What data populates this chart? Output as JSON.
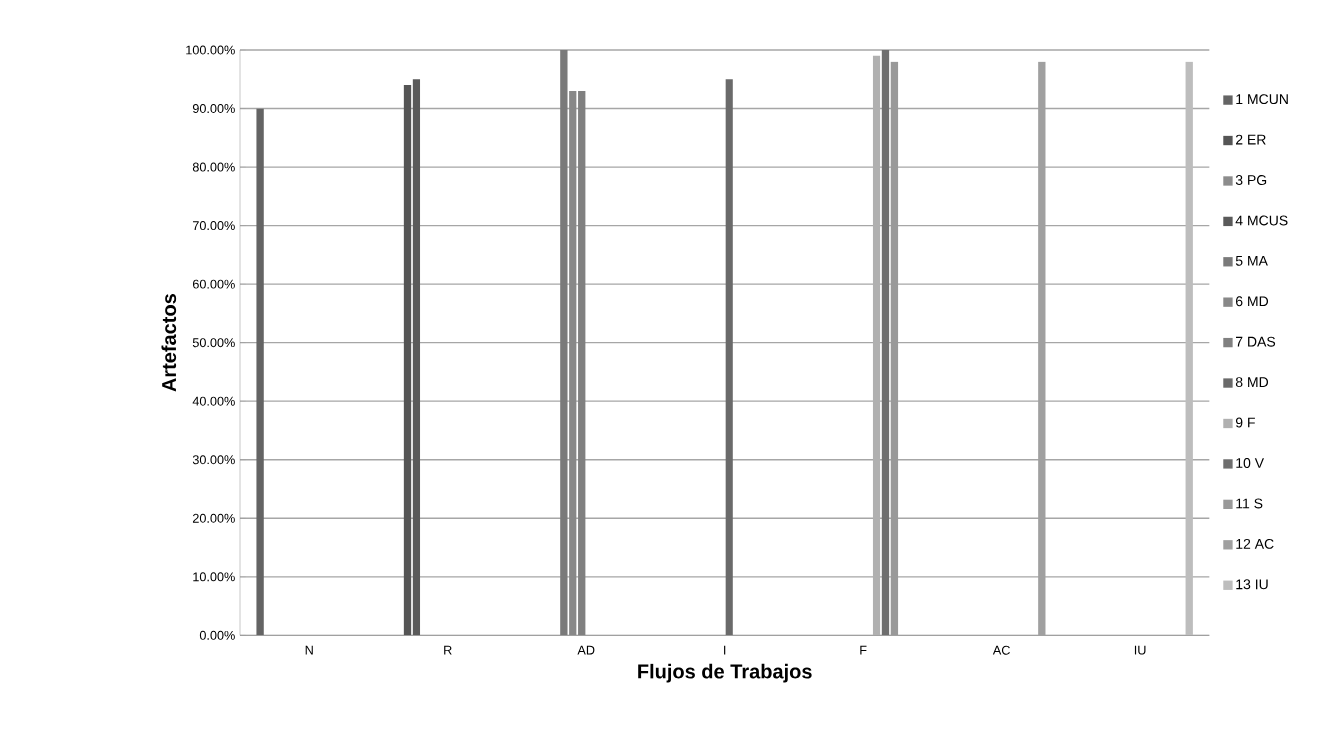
{
  "chart_data": {
    "type": "bar",
    "xlabel": "Flujos de Trabajos",
    "ylabel": "Artefactos",
    "categories": [
      "N",
      "R",
      "AD",
      "I",
      "F",
      "AC",
      "IU"
    ],
    "ylim": [
      0,
      100
    ],
    "yticks": [
      {
        "value": 0,
        "label": "0.00%"
      },
      {
        "value": 10,
        "label": "10.00%"
      },
      {
        "value": 20,
        "label": "20.00%"
      },
      {
        "value": 30,
        "label": "30.00%"
      },
      {
        "value": 40,
        "label": "40.00%"
      },
      {
        "value": 50,
        "label": "50.00%"
      },
      {
        "value": 60,
        "label": "60.00%"
      },
      {
        "value": 70,
        "label": "70.00%"
      },
      {
        "value": 80,
        "label": "80.00%"
      },
      {
        "value": 90,
        "label": "90.00%"
      },
      {
        "value": 100,
        "label": "100.00%"
      }
    ],
    "grid": "y",
    "legend": "right",
    "series": [
      {
        "name": "1 MCUN",
        "color": "#646464",
        "values": [
          90,
          null,
          null,
          null,
          null,
          null,
          null
        ]
      },
      {
        "name": "2 ER",
        "color": "#555555",
        "values": [
          null,
          94,
          null,
          null,
          null,
          null,
          null
        ]
      },
      {
        "name": "3 PG",
        "color": "#8c8c8c",
        "values": [
          null,
          null,
          null,
          null,
          null,
          null,
          null
        ]
      },
      {
        "name": "4 MCUS",
        "color": "#5a5a5a",
        "values": [
          null,
          95,
          null,
          null,
          null,
          null,
          null
        ]
      },
      {
        "name": "5 MA",
        "color": "#7a7a7a",
        "values": [
          null,
          null,
          100,
          null,
          null,
          null,
          null
        ]
      },
      {
        "name": "6 MD",
        "color": "#888888",
        "values": [
          null,
          null,
          93,
          null,
          null,
          null,
          null
        ]
      },
      {
        "name": "7 DAS",
        "color": "#808080",
        "values": [
          null,
          null,
          93,
          null,
          null,
          null,
          null
        ]
      },
      {
        "name": "8  MD",
        "color": "#6a6a6a",
        "values": [
          null,
          null,
          null,
          95,
          null,
          null,
          null
        ]
      },
      {
        "name": "9 F",
        "color": "#b0b0b0",
        "values": [
          null,
          null,
          null,
          null,
          99,
          null,
          null
        ]
      },
      {
        "name": "10 V",
        "color": "#6e6e6e",
        "values": [
          null,
          null,
          null,
          null,
          100,
          null,
          null
        ]
      },
      {
        "name": "11 S",
        "color": "#999999",
        "values": [
          null,
          null,
          null,
          null,
          98,
          null,
          null
        ]
      },
      {
        "name": "12 AC",
        "color": "#a0a0a0",
        "values": [
          null,
          null,
          null,
          null,
          null,
          98,
          null
        ]
      },
      {
        "name": "13 IU",
        "color": "#bdbdbd",
        "values": [
          null,
          null,
          null,
          null,
          null,
          null,
          98
        ]
      }
    ]
  }
}
